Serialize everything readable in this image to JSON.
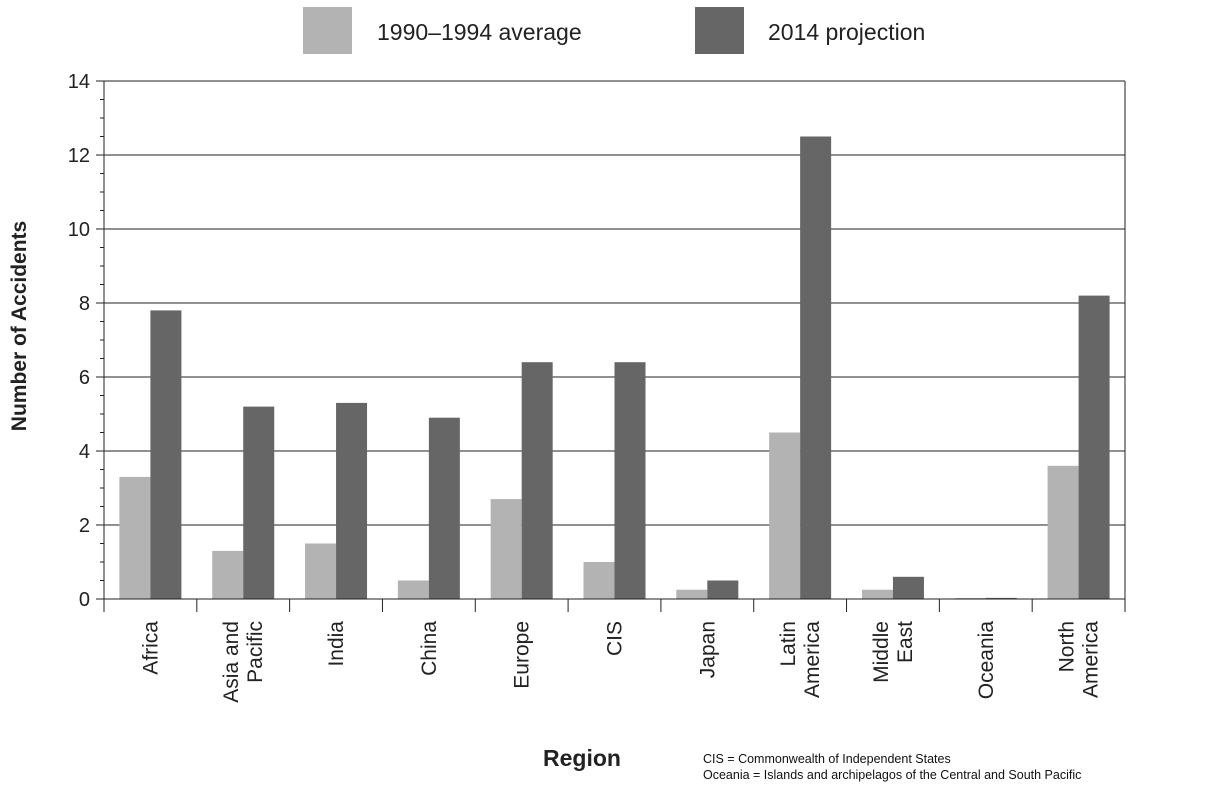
{
  "chart_data": {
    "type": "bar",
    "xlabel": "Region",
    "ylabel": "Number of Accidents",
    "ylim": [
      0,
      14
    ],
    "yticks": [
      0,
      2,
      4,
      6,
      8,
      10,
      12,
      14
    ],
    "grid": true,
    "legend_position": "top-center",
    "categories": [
      [
        "Africa"
      ],
      [
        "Asia and",
        "Pacific"
      ],
      [
        "India"
      ],
      [
        "China"
      ],
      [
        "Europe"
      ],
      [
        "CIS"
      ],
      [
        "Japan"
      ],
      [
        "Latin",
        "America"
      ],
      [
        "Middle",
        "East"
      ],
      [
        "Oceania"
      ],
      [
        "North",
        "America"
      ]
    ],
    "series": [
      {
        "name": "1990–1994 average",
        "color": "#b3b3b3",
        "values": [
          3.3,
          1.3,
          1.5,
          0.5,
          2.7,
          1.0,
          0.25,
          4.5,
          0.25,
          0.02,
          3.6
        ]
      },
      {
        "name": "2014 projection",
        "color": "#666666",
        "values": [
          7.8,
          5.2,
          5.3,
          4.9,
          6.4,
          6.4,
          0.5,
          12.5,
          0.6,
          0.03,
          8.2
        ]
      }
    ]
  },
  "notes": [
    "CIS = Commonwealth of Independent States",
    "Oceania = Islands and archipelagos of the Central and South Pacific"
  ]
}
